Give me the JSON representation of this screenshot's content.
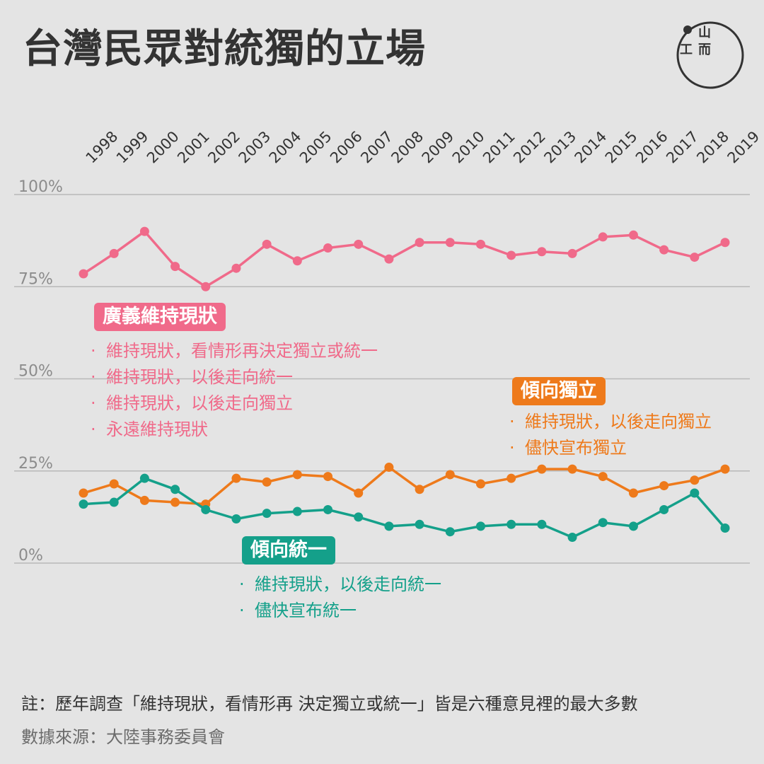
{
  "title": "台灣民眾對統獨的立場",
  "chart_data": {
    "type": "line",
    "x": [
      "1998",
      "1999",
      "2000",
      "2001",
      "2002",
      "2003",
      "2004",
      "2005",
      "2006",
      "2007",
      "2008",
      "2009",
      "2010",
      "2011",
      "2012",
      "2013",
      "2014",
      "2015",
      "2016",
      "2017",
      "2018",
      "2019"
    ],
    "yticks": [
      "100%",
      "75%",
      "50%",
      "25%",
      "0%"
    ],
    "ytick_values": [
      100,
      75,
      50,
      25,
      0
    ],
    "ylim": [
      0,
      100
    ],
    "grid": true,
    "series": [
      {
        "name": "廣義維持現狀",
        "color": "#f06a8a",
        "values": [
          78.5,
          84.0,
          90.0,
          80.5,
          75.0,
          80.0,
          86.5,
          82.0,
          85.5,
          86.5,
          82.5,
          87.0,
          87.0,
          86.5,
          83.5,
          84.5,
          84.0,
          88.5,
          89.0,
          85.0,
          83.0,
          87.0
        ]
      },
      {
        "name": "傾向獨立",
        "color": "#ee7a1b",
        "values": [
          19.0,
          21.5,
          17.0,
          16.5,
          16.0,
          23.0,
          22.0,
          24.0,
          23.5,
          19.0,
          26.0,
          20.0,
          24.0,
          21.5,
          23.0,
          25.5,
          25.5,
          23.5,
          19.0,
          21.0,
          22.5,
          25.5
        ]
      },
      {
        "name": "傾向統一",
        "color": "#14a08a",
        "values": [
          16.0,
          16.5,
          23.0,
          20.0,
          14.5,
          12.0,
          13.5,
          14.0,
          14.5,
          12.5,
          10.0,
          10.5,
          8.5,
          10.0,
          10.5,
          10.5,
          7.0,
          11.0,
          10.0,
          14.5,
          19.0,
          9.5
        ]
      }
    ]
  },
  "legends": {
    "status_quo": {
      "label": "廣義維持現狀",
      "items": [
        "維持現狀，看情形再決定獨立或統一",
        "維持現狀，以後走向統一",
        "維持現狀，以後走向獨立",
        "永遠維持現狀"
      ]
    },
    "independence": {
      "label": "傾向獨立",
      "items": [
        "維持現狀，以後走向獨立",
        "儘快宣布獨立"
      ]
    },
    "unification": {
      "label": "傾向統一",
      "items": [
        "維持現狀，以後走向統一",
        "儘快宣布統一"
      ]
    }
  },
  "footer": {
    "note": "註：歷年調查「維持現狀，看情形再 決定獨立或統一」皆是六種意見裡的最大多數",
    "source": "數據來源：大陸事務委員會"
  },
  "logo": {
    "icon": "theinitium-logo-icon",
    "glyphs": [
      "山",
      "工",
      "而"
    ]
  },
  "colors": {
    "background": "#e4e4e4",
    "status_quo": "#f06a8a",
    "independence": "#ee7a1b",
    "unification": "#14a08a",
    "grid": "#b8b8b8",
    "axis_text": "#8c8c8c"
  }
}
